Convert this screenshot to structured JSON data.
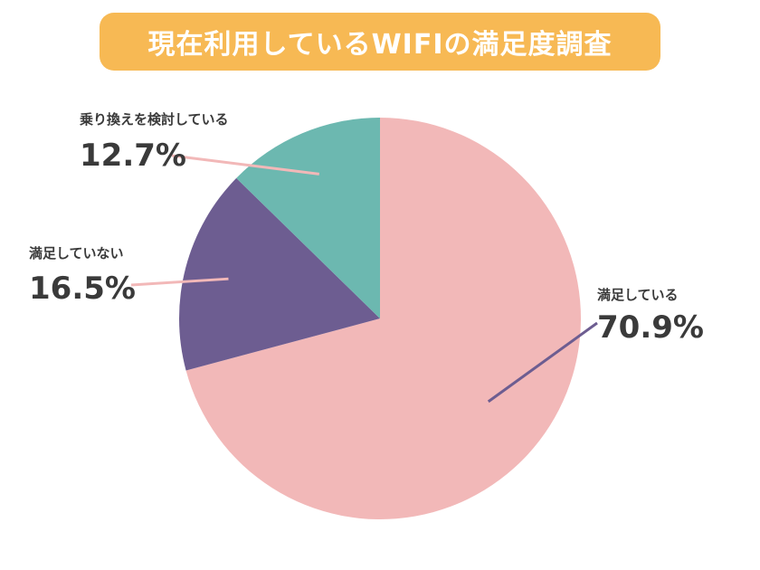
{
  "chart_data": {
    "type": "pie",
    "title": "現在利用しているWIFIの満足度調査",
    "slices": [
      {
        "label": "満足している",
        "value": 70.9,
        "display": "70.9%",
        "color": "#f2b8b8",
        "line_color": "#6d5d91"
      },
      {
        "label": "満足していない",
        "value": 16.5,
        "display": "16.5%",
        "color": "#6d5d91",
        "line_color": "#f2b8b8"
      },
      {
        "label": "乗り換えを検討している",
        "value": 12.7,
        "display": "12.7%",
        "color": "#6cb8b0",
        "line_color": "#f2b8b8"
      }
    ]
  }
}
